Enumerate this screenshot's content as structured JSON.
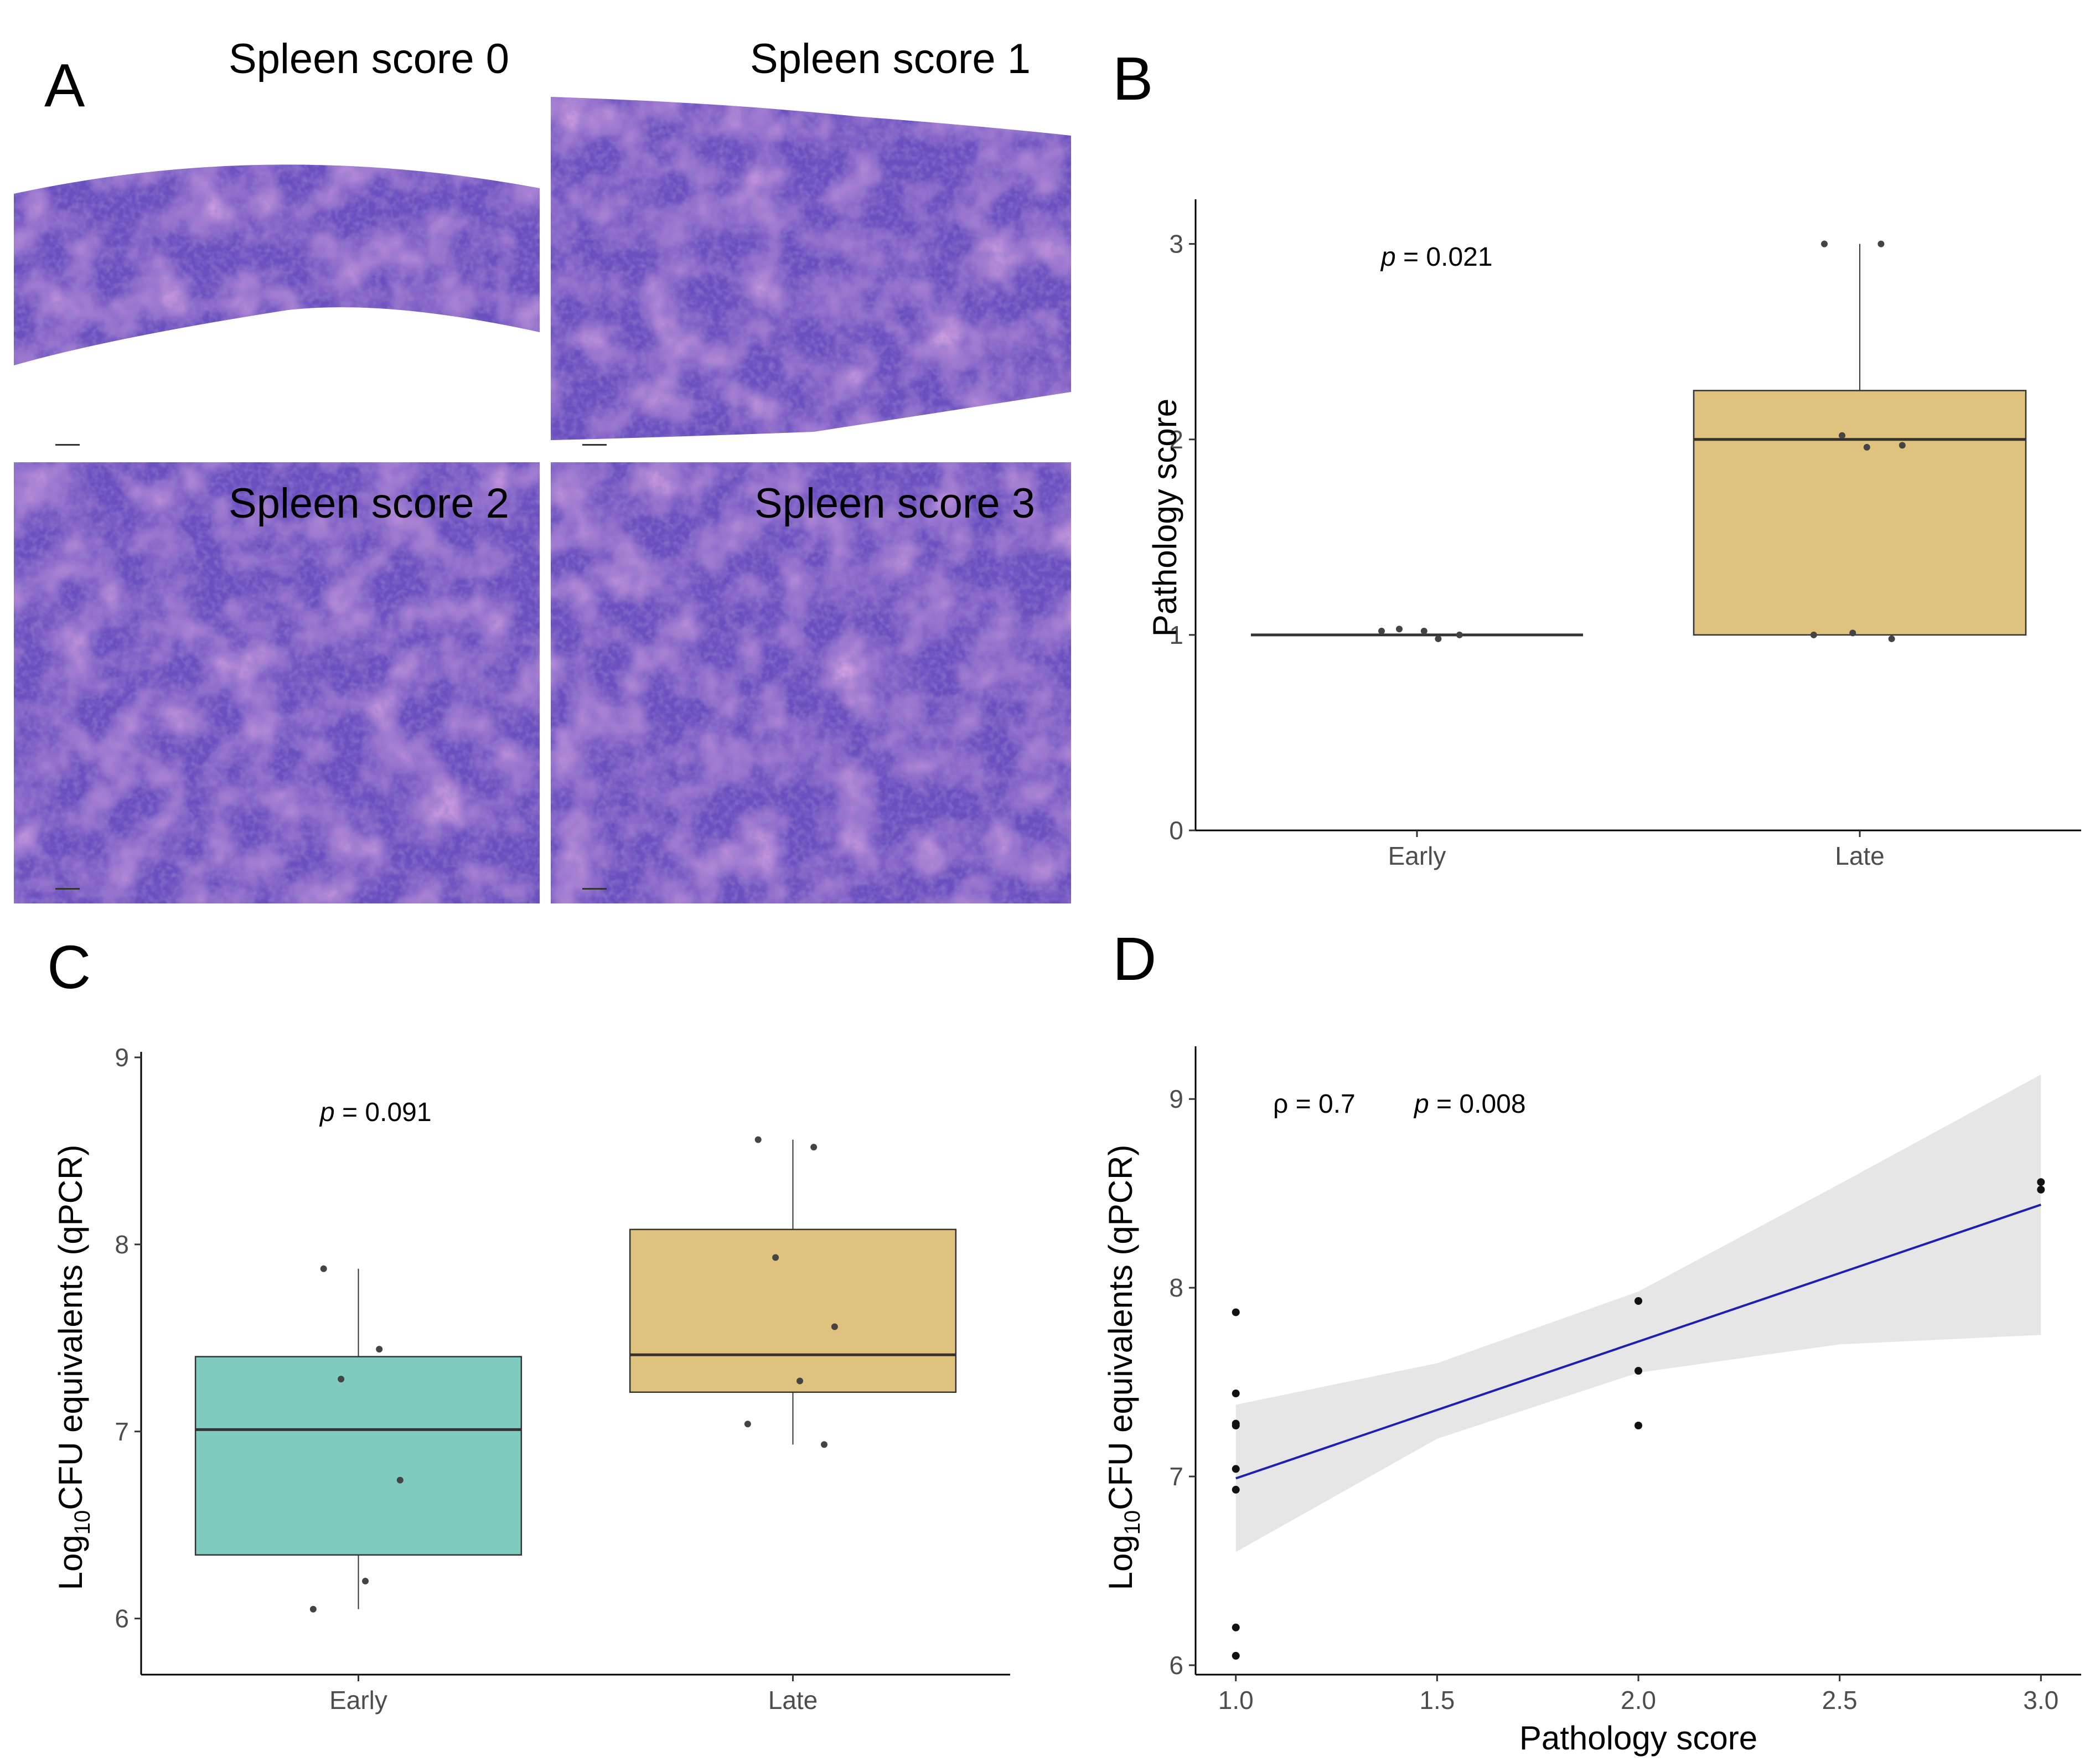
{
  "figure": {
    "panels": {
      "A": {
        "letter": "A",
        "images": [
          {
            "label": "Spleen score 0"
          },
          {
            "label": "Spleen score 1"
          },
          {
            "label": "Spleen score 2"
          },
          {
            "label": "Spleen score 3"
          }
        ]
      },
      "B": {
        "letter": "B"
      },
      "C": {
        "letter": "C"
      },
      "D": {
        "letter": "D"
      }
    }
  },
  "colors": {
    "early_fill": "#80CBBF",
    "late_fill": "#DFC27D",
    "box_outline": "#333333",
    "regression_line": "#1F1FB4",
    "confidence_band": "#E6E6E6",
    "tissue_dark": "#6A4FBF",
    "tissue_light": "#C66CC8"
  },
  "chart_data": [
    {
      "panel": "B",
      "type": "box",
      "categories": [
        "Early",
        "Late"
      ],
      "xlabel": "",
      "ylabel": "Pathology score",
      "ylim": [
        0,
        3.2
      ],
      "yticks": [
        "0",
        "1",
        "2",
        "3"
      ],
      "annotation": {
        "italic": "p",
        "text": " = 0.021"
      },
      "series": [
        {
          "name": "Early",
          "stats": {
            "min": 1,
            "q1": 1,
            "median": 1,
            "q3": 1,
            "max": 1
          },
          "points": [
            1.02,
            0.98,
            1.03,
            1.0,
            1.02
          ]
        },
        {
          "name": "Late",
          "stats": {
            "min": 1,
            "q1": 1,
            "median": 2,
            "q3": 2.25,
            "max": 3
          },
          "points": [
            3.0,
            3.0,
            2.02,
            1.97,
            1.96,
            1.0,
            0.98,
            1.01
          ]
        }
      ]
    },
    {
      "panel": "C",
      "type": "box",
      "categories": [
        "Early",
        "Late"
      ],
      "xlabel": "",
      "ylabel": {
        "prefix": "Log",
        "subscript": "10",
        "suffix": "CFU equivalents (qPCR)"
      },
      "ylim": [
        5.7,
        9.0
      ],
      "yticks": [
        "6",
        "7",
        "8",
        "9"
      ],
      "annotation": {
        "italic": "p",
        "text": " = 0.091"
      },
      "series": [
        {
          "name": "Early",
          "stats": {
            "min": 6.05,
            "q1": 6.34,
            "median": 7.01,
            "q3": 7.4,
            "max": 7.87
          },
          "points": [
            7.87,
            7.44,
            7.28,
            6.74,
            6.2,
            6.05
          ]
        },
        {
          "name": "Late",
          "stats": {
            "min": 6.93,
            "q1": 7.21,
            "median": 7.41,
            "q3": 8.08,
            "max": 8.56
          },
          "points": [
            8.56,
            8.52,
            7.93,
            7.56,
            7.27,
            7.04,
            6.93
          ]
        }
      ]
    },
    {
      "panel": "D",
      "type": "scatter",
      "xlabel": "Pathology score",
      "ylabel": {
        "prefix": "Log",
        "subscript": "10",
        "suffix": "CFU equivalents (qPCR)"
      },
      "xlim": [
        0.9,
        3.1
      ],
      "ylim": [
        5.95,
        9.25
      ],
      "xticks": [
        "1.0",
        "1.5",
        "2.0",
        "2.5",
        "3.0"
      ],
      "yticks": [
        "6",
        "7",
        "8",
        "9"
      ],
      "annotation_rho": {
        "text": "ρ = 0.7"
      },
      "annotation_p": {
        "italic": "p",
        "text": " = 0.008"
      },
      "points": [
        {
          "x": 1.0,
          "y": 7.87
        },
        {
          "x": 1.0,
          "y": 7.44
        },
        {
          "x": 1.0,
          "y": 7.28
        },
        {
          "x": 1.0,
          "y": 7.27
        },
        {
          "x": 1.0,
          "y": 7.04
        },
        {
          "x": 1.0,
          "y": 6.93
        },
        {
          "x": 1.0,
          "y": 6.2
        },
        {
          "x": 1.0,
          "y": 6.05
        },
        {
          "x": 2.0,
          "y": 7.93
        },
        {
          "x": 2.0,
          "y": 7.56
        },
        {
          "x": 2.0,
          "y": 7.27
        },
        {
          "x": 3.0,
          "y": 8.56
        },
        {
          "x": 3.0,
          "y": 8.52
        }
      ],
      "regression": {
        "x0": 1.0,
        "y0": 6.99,
        "x1": 3.0,
        "y1": 8.44
      },
      "confidence_band": {
        "lower": [
          [
            1.0,
            6.6
          ],
          [
            1.5,
            7.2
          ],
          [
            2.0,
            7.55
          ],
          [
            2.5,
            7.7
          ],
          [
            3.0,
            7.75
          ]
        ],
        "upper": [
          [
            1.0,
            7.38
          ],
          [
            1.5,
            7.6
          ],
          [
            2.0,
            7.98
          ],
          [
            2.5,
            8.55
          ],
          [
            3.0,
            9.13
          ]
        ]
      }
    }
  ]
}
